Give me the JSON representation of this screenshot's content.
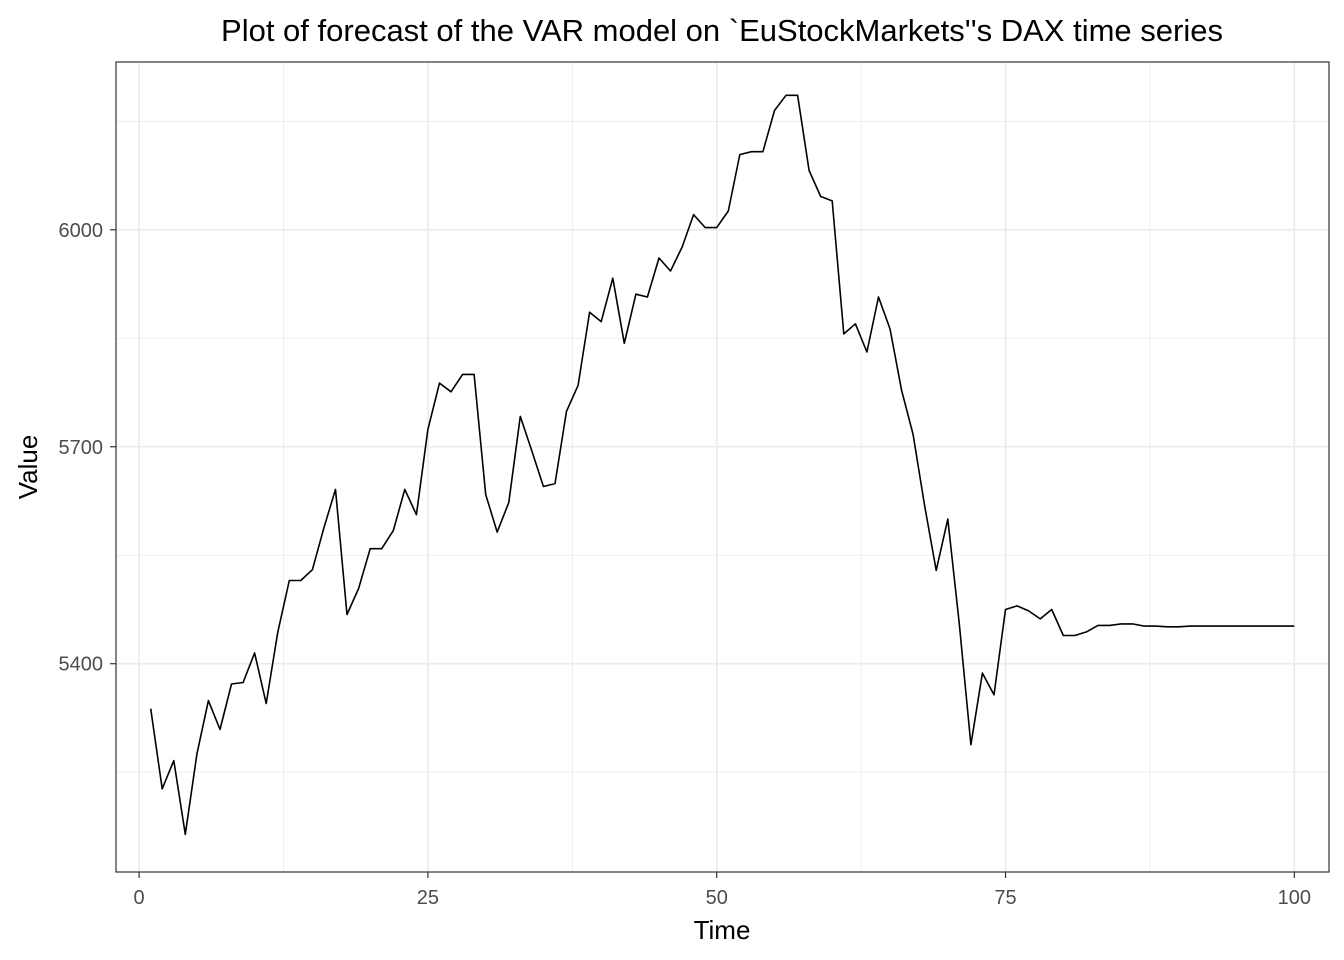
{
  "chart_data": {
    "type": "line",
    "title": "Plot of forecast of the VAR model on `EuStockMarkets''s DAX time series",
    "xlabel": "Time",
    "ylabel": "Value",
    "xlim": [
      -2,
      103
    ],
    "ylim": [
      5112,
      6232
    ],
    "xticks": [
      0,
      25,
      50,
      75,
      100
    ],
    "yticks": [
      5400,
      5700,
      6000
    ],
    "grid": true,
    "line_color": "#000000",
    "grid_color": "#ebebeb",
    "x": [
      1,
      2,
      3,
      4,
      5,
      6,
      7,
      8,
      9,
      10,
      11,
      12,
      13,
      14,
      15,
      16,
      17,
      18,
      19,
      20,
      21,
      22,
      23,
      24,
      25,
      26,
      27,
      28,
      29,
      30,
      31,
      32,
      33,
      34,
      35,
      36,
      37,
      38,
      39,
      40,
      41,
      42,
      43,
      44,
      45,
      46,
      47,
      48,
      49,
      50,
      51,
      52,
      53,
      54,
      55,
      56,
      57,
      58,
      59,
      60,
      61,
      62,
      63,
      64,
      65,
      66,
      67,
      68,
      69,
      70,
      71,
      72,
      73,
      74,
      75,
      76,
      77,
      78,
      79,
      80,
      81,
      82,
      83,
      84,
      85,
      86,
      87,
      88,
      89,
      90,
      91,
      92,
      93,
      94,
      95,
      96,
      97,
      98,
      99,
      100
    ],
    "y": [
      5338,
      5227,
      5266,
      5164,
      5275,
      5349,
      5309,
      5372,
      5374,
      5415,
      5345,
      5443,
      5515,
      5515,
      5530,
      5588,
      5641,
      5468,
      5504,
      5559,
      5559,
      5584,
      5641,
      5606,
      5724,
      5788,
      5776,
      5800,
      5800,
      5634,
      5582,
      5623,
      5742,
      5694,
      5645,
      5649,
      5749,
      5785,
      5886,
      5873,
      5933,
      5843,
      5911,
      5907,
      5961,
      5943,
      5976,
      6021,
      6003,
      6003,
      6026,
      6104,
      6108,
      6108,
      6165,
      6186,
      6186,
      6082,
      6046,
      6040,
      5856,
      5870,
      5831,
      5907,
      5863,
      5778,
      5717,
      5618,
      5529,
      5600,
      5455,
      5288,
      5387,
      5357,
      5475,
      5480,
      5473,
      5462,
      5475,
      5439,
      5439,
      5444,
      5453,
      5453,
      5455,
      5455,
      5452,
      5452,
      5451,
      5451,
      5452,
      5452,
      5452,
      5452,
      5452,
      5452,
      5452,
      5452,
      5452,
      5452
    ]
  }
}
